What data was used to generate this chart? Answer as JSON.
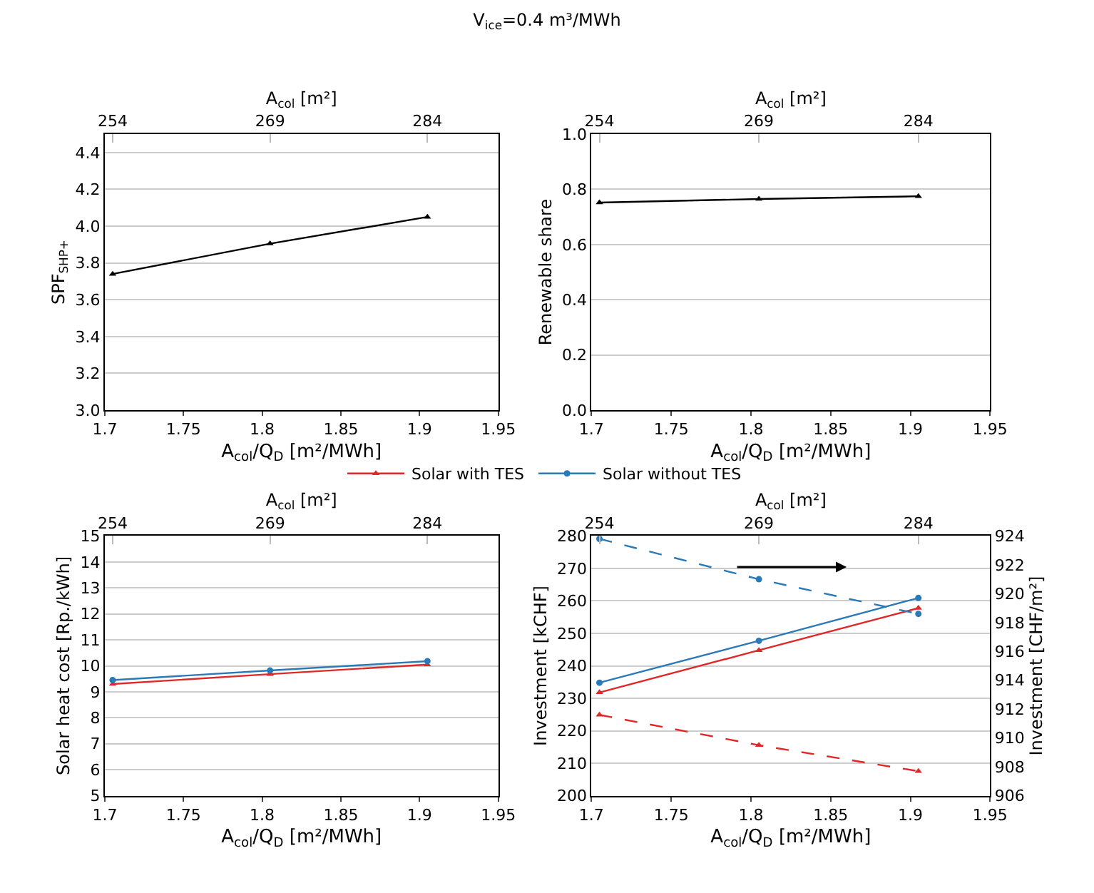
{
  "chart_data": [
    {
      "type": "line",
      "title": "V$_{ice}$=0.4 m³/MWh",
      "xlabel": "A$_{col}$/Q$_{D}$ [m²/MWh]",
      "ylabel": "SPF$_{SHP+}$",
      "x2label": "A$_{col}$ [m²]",
      "x": [
        1.705,
        1.805,
        1.905
      ],
      "xlim": [
        1.7,
        1.95
      ],
      "xticks": [
        1.7,
        1.75,
        1.8,
        1.85,
        1.9,
        1.95
      ],
      "x2lim": [
        253.25,
        290.75
      ],
      "x2ticks": [
        254,
        269,
        284
      ],
      "ylim": [
        3.0,
        4.5
      ],
      "yticks": [
        {
          "value": 3.0,
          "label": "3.0"
        },
        3.2,
        3.4,
        3.6,
        3.8,
        {
          "value": 4.0,
          "label": "4.0"
        },
        4.2,
        4.4
      ],
      "grid": "y",
      "marker": "triangle",
      "series": [
        {
          "color": "#000000",
          "values": [
            3.74,
            3.905,
            4.05
          ]
        }
      ]
    },
    {
      "type": "line",
      "xlabel": "A$_{col}$/Q$_{D}$ [m²/MWh]",
      "ylabel": "Renewable share",
      "x2label": "A$_{col}$ [m²]",
      "x": [
        1.705,
        1.805,
        1.905
      ],
      "xlim": [
        1.7,
        1.95
      ],
      "xticks": [
        1.7,
        1.75,
        1.8,
        1.85,
        1.9,
        1.95
      ],
      "x2lim": [
        253.25,
        290.75
      ],
      "x2ticks": [
        254,
        269,
        284
      ],
      "ylim": [
        0.0,
        1.0
      ],
      "yticks": [
        {
          "value": 0,
          "label": "0.0"
        },
        0.2,
        0.4,
        0.6,
        0.8,
        {
          "value": 1,
          "label": "1.0"
        }
      ],
      "grid": "y",
      "marker": "triangle",
      "series": [
        {
          "color": "#000000",
          "values": [
            0.752,
            0.765,
            0.775
          ]
        }
      ]
    },
    {
      "type": "line",
      "xlabel": "A$_{col}$/Q$_{D}$ [m²/MWh]",
      "ylabel": "Solar heat cost [Rp./kWh]",
      "x2label": "A$_{col}$ [m²]",
      "x": [
        1.705,
        1.805,
        1.905
      ],
      "xlim": [
        1.7,
        1.95
      ],
      "xticks": [
        1.7,
        1.75,
        1.8,
        1.85,
        1.9,
        1.95
      ],
      "x2lim": [
        253.25,
        290.75
      ],
      "x2ticks": [
        254,
        269,
        284
      ],
      "ylim": [
        5,
        15
      ],
      "yticks": [
        5,
        6,
        7,
        8,
        9,
        10,
        11,
        12,
        13,
        14,
        15
      ],
      "grid": "y",
      "legend": "top",
      "series": [
        {
          "name": "Solar with TES",
          "color": "#e02828",
          "marker": "triangle",
          "values": [
            9.3,
            9.68,
            10.05
          ]
        },
        {
          "name": "Solar without TES",
          "color": "#2a7ab8",
          "marker": "circle",
          "values": [
            9.45,
            9.82,
            10.18
          ]
        }
      ]
    },
    {
      "type": "line",
      "xlabel": "A$_{col}$/Q$_{D}$ [m²/MWh]",
      "ylabel": "Investment [kCHF]",
      "y2label": "Investment [CHF/m²]",
      "x2label": "A$_{col}$ [m²]",
      "x": [
        1.705,
        1.805,
        1.905
      ],
      "xlim": [
        1.7,
        1.95
      ],
      "xticks": [
        1.7,
        1.75,
        1.8,
        1.85,
        1.9,
        1.95
      ],
      "x2lim": [
        253.25,
        290.75
      ],
      "x2ticks": [
        254,
        269,
        284
      ],
      "ylim": [
        200,
        280
      ],
      "yticks": [
        200,
        210,
        220,
        230,
        240,
        250,
        260,
        270,
        280
      ],
      "y2lim": [
        906,
        924
      ],
      "y2ticks": [
        906,
        908,
        910,
        912,
        914,
        916,
        918,
        920,
        922,
        924
      ],
      "grid": "y",
      "series": [
        {
          "color": "#e02828",
          "marker": "triangle",
          "values": [
            231.8,
            244.8,
            257.8
          ]
        },
        {
          "color": "#2a7ab8",
          "marker": "circle",
          "values": [
            234.8,
            247.7,
            260.9
          ]
        },
        {
          "color": "#e02828",
          "marker": "triangle",
          "line_style": "dashed",
          "axis": "y2",
          "values": [
            911.6,
            909.5,
            907.7
          ]
        },
        {
          "color": "#2a7ab8",
          "marker": "circle",
          "line_style": "dashed",
          "axis": "y2",
          "values": [
            923.8,
            921.0,
            918.6
          ]
        }
      ]
    }
  ]
}
